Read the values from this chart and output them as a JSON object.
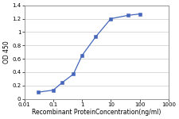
{
  "x": [
    0.03,
    0.1,
    0.2,
    0.5,
    1.0,
    3.0,
    10.0,
    40.0,
    100.0
  ],
  "y": [
    0.1,
    0.13,
    0.24,
    0.37,
    0.65,
    0.93,
    1.2,
    1.25,
    1.27
  ],
  "line_color": "#4466bb",
  "marker": "s",
  "marker_size": 2.2,
  "line_width": 0.9,
  "xlabel": "Recombinant ProteinConcentration(ng/ml)",
  "ylabel": "OD 450",
  "xlim": [
    0.01,
    1000
  ],
  "ylim": [
    0,
    1.4
  ],
  "yticks": [
    0,
    0.2,
    0.4,
    0.6,
    0.8,
    1.0,
    1.2,
    1.4
  ],
  "xticks": [
    0.01,
    0.1,
    1,
    10,
    100,
    1000
  ],
  "xtick_labels": [
    "0.01",
    "0.1",
    "1",
    "10",
    "100",
    "1000"
  ],
  "axis_fontsize": 5.5,
  "tick_fontsize": 5.0,
  "background_color": "#ffffff",
  "grid_color": "#cccccc",
  "spine_color": "#888888"
}
